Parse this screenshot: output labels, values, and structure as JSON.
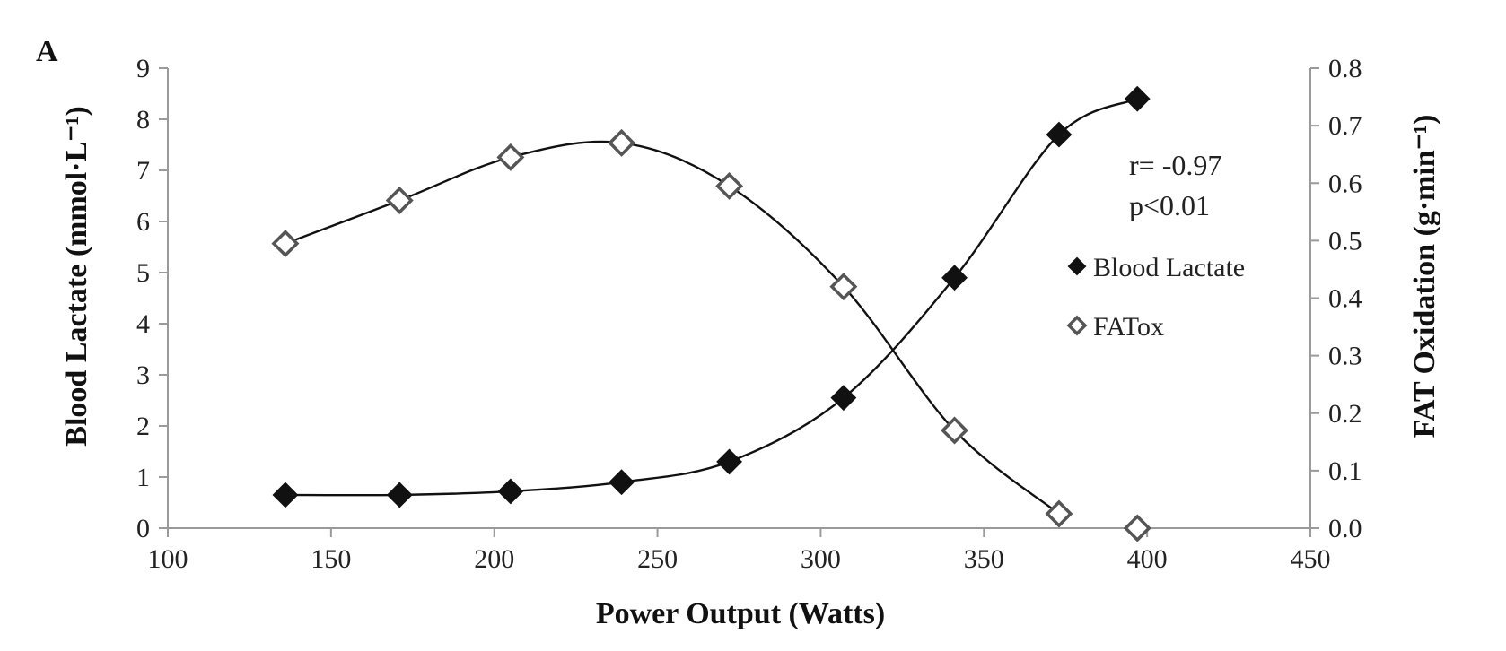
{
  "chart_data": {
    "type": "line",
    "panel_label": "A",
    "xlabel": "Power Output (Watts)",
    "ylabel_left": "Blood Lactate (mmol·L⁻¹)",
    "ylabel_right": "FAT Oxidation (g·min⁻¹)",
    "xlim": [
      100,
      450
    ],
    "ylim_left": [
      0,
      9
    ],
    "ylim_right": [
      0,
      0.8
    ],
    "x_ticks": [
      "100",
      "150",
      "200",
      "250",
      "300",
      "350",
      "400",
      "450"
    ],
    "y_left_ticks": [
      "0",
      "1",
      "2",
      "3",
      "4",
      "5",
      "6",
      "7",
      "8",
      "9"
    ],
    "y_right_ticks": [
      "0.0",
      "0.1",
      "0.2",
      "0.3",
      "0.4",
      "0.5",
      "0.6",
      "0.7",
      "0.8"
    ],
    "grid": false,
    "legend_placement": "right",
    "annotations": [
      "r= -0.97",
      "p<0.01"
    ],
    "series": [
      {
        "name": "Blood Lactate",
        "axis": "left",
        "marker": "filled-diamond",
        "x": [
          136,
          171,
          205,
          239,
          272,
          307,
          341,
          373,
          397
        ],
        "y": [
          0.65,
          0.65,
          0.72,
          0.9,
          1.3,
          2.55,
          4.9,
          7.7,
          8.4
        ]
      },
      {
        "name": "FATox",
        "axis": "right",
        "marker": "open-diamond",
        "x": [
          136,
          171,
          205,
          239,
          272,
          307,
          341,
          373,
          397
        ],
        "y": [
          0.495,
          0.57,
          0.645,
          0.67,
          0.595,
          0.42,
          0.17,
          0.025,
          0.0
        ]
      }
    ]
  }
}
